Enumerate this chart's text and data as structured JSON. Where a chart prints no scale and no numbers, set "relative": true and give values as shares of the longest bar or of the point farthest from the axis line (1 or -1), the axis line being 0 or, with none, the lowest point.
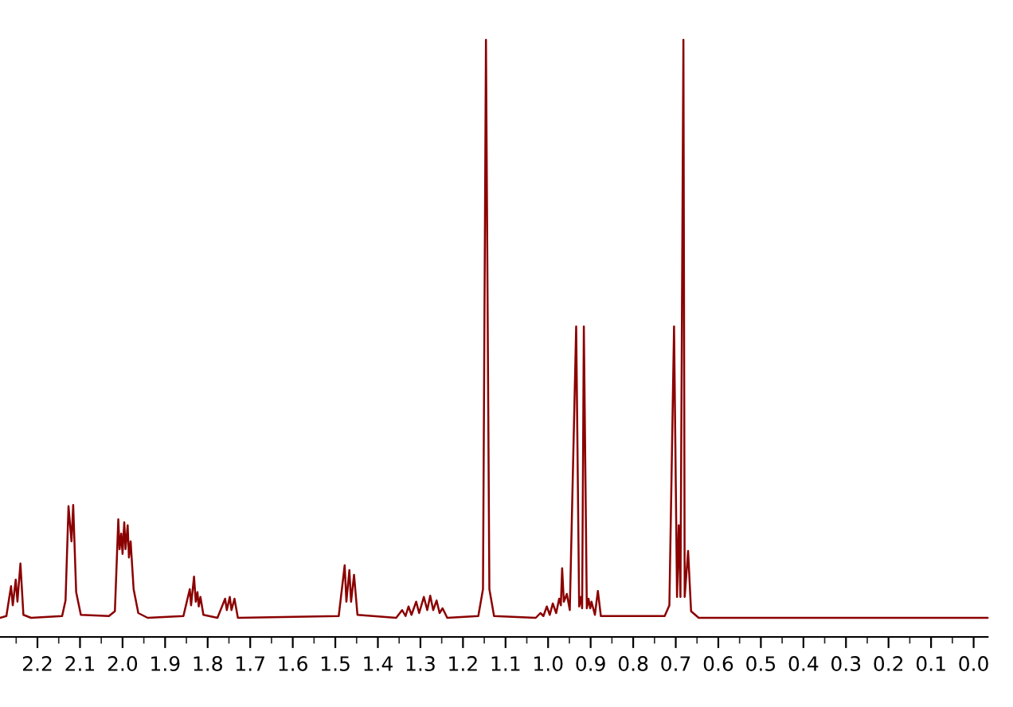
{
  "chart_data": {
    "type": "line",
    "relative": true,
    "xlim": [
      2.288,
      -0.033
    ],
    "xticks": [
      2.2,
      2.1,
      {
        "value": 2,
        "label": "2.0"
      },
      1.9,
      1.8,
      1.7,
      1.6,
      1.5,
      1.4,
      1.3,
      1.2,
      1.1,
      {
        "value": 1,
        "label": "1.0"
      },
      0.9,
      0.8,
      0.7,
      0.6,
      0.5,
      0.4,
      0.3,
      0.2,
      0.1,
      {
        "value": 0,
        "label": "0.0"
      },
      {
        "value": 2.25,
        "label": null
      },
      {
        "value": 2.15,
        "label": null
      },
      {
        "value": 2.05,
        "label": null
      },
      {
        "value": 1.95,
        "label": null
      },
      {
        "value": 1.85,
        "label": null
      },
      {
        "value": 1.75,
        "label": null
      },
      {
        "value": 1.65,
        "label": null
      },
      {
        "value": 1.55,
        "label": null
      },
      {
        "value": 1.45,
        "label": null
      },
      {
        "value": 1.35,
        "label": null
      },
      {
        "value": 1.25,
        "label": null
      },
      {
        "value": 1.15,
        "label": null
      },
      {
        "value": 1.05,
        "label": null
      },
      {
        "value": 0.95,
        "label": null
      },
      {
        "value": 0.85,
        "label": null
      },
      {
        "value": 0.75,
        "label": null
      },
      {
        "value": 0.65,
        "label": null
      },
      {
        "value": 0.55,
        "label": null
      },
      {
        "value": 0.45,
        "label": null
      },
      {
        "value": 0.35,
        "label": null
      },
      {
        "value": 0.25,
        "label": null
      },
      {
        "value": 0.15,
        "label": null
      },
      {
        "value": 0.05,
        "label": null
      }
    ],
    "marker": "none",
    "line_style": "solid",
    "series": [
      {
        "color": "#8b0000",
        "x": [
          2.288,
          2.273,
          2.262,
          2.258,
          2.251,
          2.247,
          2.24,
          2.233,
          2.215,
          2.142,
          2.134,
          2.127,
          2.12,
          2.116,
          2.109,
          2.098,
          2.032,
          2.018,
          2.01,
          2.007,
          2.003,
          2.0,
          1.996,
          1.993,
          1.988,
          1.985,
          1.981,
          1.974,
          1.963,
          1.941,
          1.857,
          1.842,
          1.839,
          1.832,
          1.828,
          1.824,
          1.821,
          1.817,
          1.81,
          1.777,
          1.759,
          1.755,
          1.748,
          1.744,
          1.737,
          1.729,
          1.492,
          1.478,
          1.474,
          1.467,
          1.463,
          1.456,
          1.448,
          1.357,
          1.343,
          1.335,
          1.328,
          1.321,
          1.31,
          1.303,
          1.292,
          1.284,
          1.277,
          1.27,
          1.262,
          1.255,
          1.248,
          1.237,
          1.164,
          1.153,
          1.146,
          1.138,
          1.127,
          1.029,
          1.018,
          1.011,
          1.003,
          0.996,
          0.989,
          0.981,
          0.974,
          0.97,
          0.967,
          0.963,
          0.956,
          0.949,
          0.934,
          0.927,
          0.923,
          0.92,
          0.916,
          0.909,
          0.905,
          0.901,
          0.898,
          0.89,
          0.883,
          0.876,
          0.726,
          0.715,
          0.704,
          0.697,
          0.693,
          0.689,
          0.682,
          0.679,
          0.671,
          0.664,
          0.646,
          -0.033
        ],
        "values": [
          0.032,
          0.035,
          0.085,
          0.053,
          0.096,
          0.059,
          0.123,
          0.037,
          0.032,
          0.035,
          0.061,
          0.219,
          0.16,
          0.221,
          0.075,
          0.037,
          0.035,
          0.043,
          0.197,
          0.147,
          0.173,
          0.139,
          0.192,
          0.147,
          0.187,
          0.133,
          0.16,
          0.08,
          0.04,
          0.032,
          0.035,
          0.08,
          0.053,
          0.101,
          0.059,
          0.075,
          0.051,
          0.067,
          0.037,
          0.032,
          0.064,
          0.045,
          0.067,
          0.045,
          0.064,
          0.032,
          0.035,
          0.12,
          0.059,
          0.112,
          0.059,
          0.104,
          0.037,
          0.032,
          0.045,
          0.035,
          0.051,
          0.037,
          0.059,
          0.04,
          0.067,
          0.045,
          0.069,
          0.045,
          0.061,
          0.04,
          0.048,
          0.032,
          0.035,
          0.08,
          1.0,
          0.08,
          0.035,
          0.032,
          0.04,
          0.035,
          0.051,
          0.037,
          0.056,
          0.04,
          0.064,
          0.053,
          0.115,
          0.059,
          0.072,
          0.045,
          0.52,
          0.051,
          0.067,
          0.048,
          0.52,
          0.048,
          0.064,
          0.048,
          0.059,
          0.037,
          0.077,
          0.035,
          0.035,
          0.053,
          0.52,
          0.067,
          0.187,
          0.067,
          1.0,
          0.067,
          0.144,
          0.043,
          0.032,
          0.032
        ]
      }
    ]
  }
}
